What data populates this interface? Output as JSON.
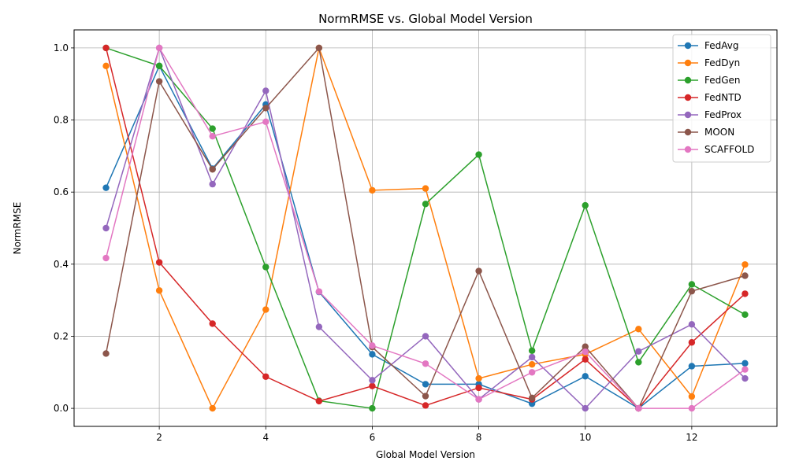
{
  "chart_data": {
    "type": "line",
    "title": "NormRMSE vs. Global Model Version",
    "xlabel": "Global Model Version",
    "ylabel": "NormRMSE",
    "xlim": [
      0.4,
      13.6
    ],
    "ylim": [
      -0.05,
      1.05
    ],
    "xticks": [
      2,
      4,
      6,
      8,
      10,
      12
    ],
    "yticks": [
      0.0,
      0.2,
      0.4,
      0.6,
      0.8,
      1.0
    ],
    "grid": true,
    "legend_position": "top-right",
    "x": [
      1,
      2,
      3,
      4,
      5,
      6,
      7,
      8,
      9,
      10,
      11,
      12,
      13
    ],
    "series": [
      {
        "name": "FedAvg",
        "color": "#1f77b4",
        "values": [
          0.612,
          0.95,
          0.665,
          0.843,
          0.323,
          0.15,
          0.067,
          0.067,
          0.013,
          0.089,
          0.0,
          0.117,
          0.125
        ]
      },
      {
        "name": "FedDyn",
        "color": "#ff7f0e",
        "values": [
          0.95,
          0.327,
          0.0,
          0.274,
          1.0,
          0.605,
          0.61,
          0.083,
          0.122,
          0.15,
          0.22,
          0.033,
          0.399
        ]
      },
      {
        "name": "FedGen",
        "color": "#2ca02c",
        "values": [
          1.0,
          0.95,
          0.776,
          0.392,
          0.021,
          0.0,
          0.567,
          0.704,
          0.16,
          0.563,
          0.128,
          0.344,
          0.26
        ]
      },
      {
        "name": "FedNTD",
        "color": "#d62728",
        "values": [
          1.0,
          0.405,
          0.235,
          0.088,
          0.02,
          0.062,
          0.008,
          0.057,
          0.025,
          0.136,
          0.0,
          0.183,
          0.318
        ]
      },
      {
        "name": "FedProx",
        "color": "#9467bd",
        "values": [
          0.5,
          1.0,
          0.622,
          0.881,
          0.226,
          0.078,
          0.2,
          0.025,
          0.142,
          0.0,
          0.158,
          0.233,
          0.083
        ]
      },
      {
        "name": "MOON",
        "color": "#8c564b",
        "values": [
          0.152,
          0.907,
          0.663,
          0.833,
          1.0,
          0.17,
          0.034,
          0.381,
          0.029,
          0.171,
          0.0,
          0.325,
          0.368
        ]
      },
      {
        "name": "SCAFFOLD",
        "color": "#e377c2",
        "values": [
          0.417,
          1.0,
          0.755,
          0.795,
          0.324,
          0.174,
          0.124,
          0.025,
          0.1,
          0.157,
          0.0,
          0.0,
          0.108
        ]
      }
    ]
  }
}
